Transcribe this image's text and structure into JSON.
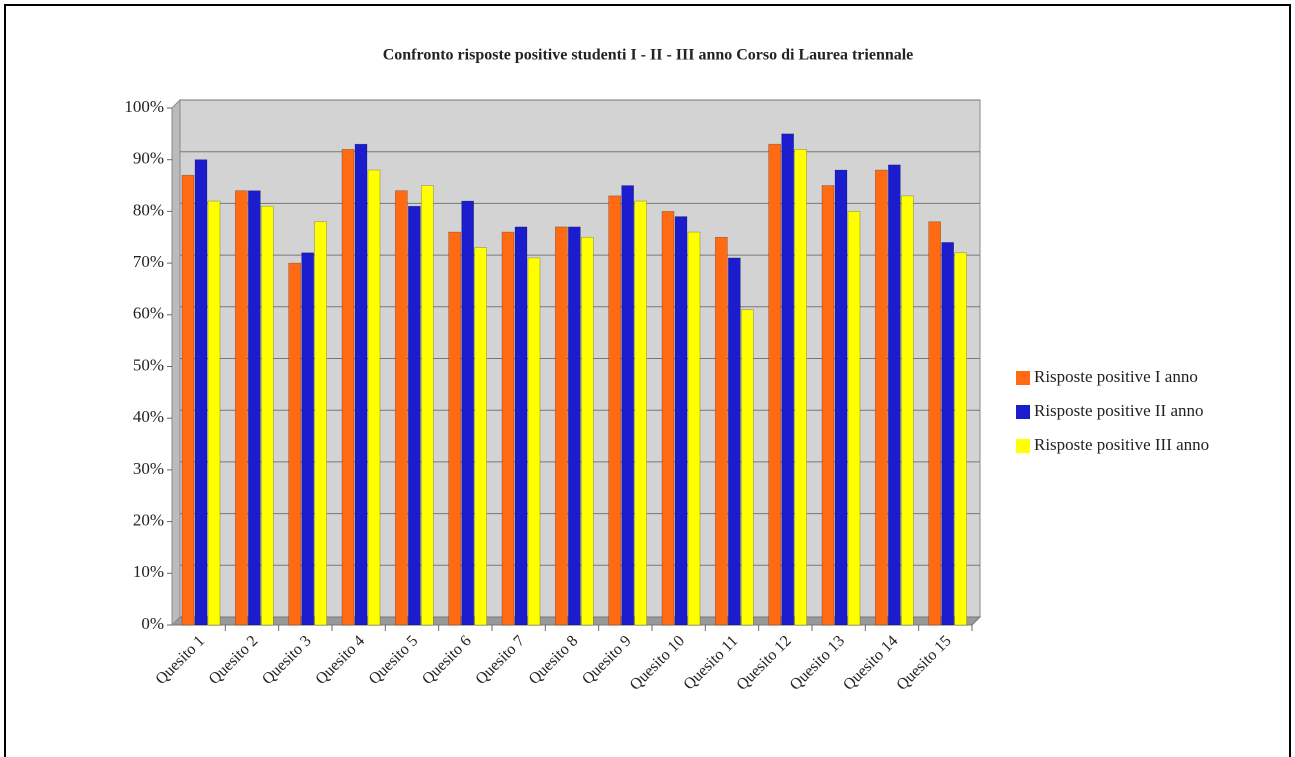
{
  "chart_data": {
    "type": "bar",
    "title": "Confronto risposte positive studenti I - II - III anno Corso di Laurea triennale",
    "categories": [
      "Quesito 1",
      "Quesito 2",
      "Quesito 3",
      "Quesito 4",
      "Quesito 5",
      "Quesito 6",
      "Quesito 7",
      "Quesito 8",
      "Quesito 9",
      "Quesito 10",
      "Quesito 11",
      "Quesito 12",
      "Quesito 13",
      "Quesito 14",
      "Quesito 15"
    ],
    "series": [
      {
        "name": "Risposte positive I anno",
        "color": "#ff6a13",
        "values": [
          87,
          84,
          70,
          92,
          84,
          76,
          76,
          77,
          83,
          80,
          75,
          93,
          85,
          88,
          78
        ]
      },
      {
        "name": "Risposte positive II anno",
        "color": "#1c1ccf",
        "values": [
          90,
          84,
          72,
          93,
          81,
          82,
          77,
          77,
          85,
          79,
          71,
          95,
          88,
          89,
          74
        ]
      },
      {
        "name": "Risposte positive III anno",
        "color": "#ffff00",
        "values": [
          82,
          81,
          78,
          88,
          85,
          73,
          71,
          75,
          82,
          76,
          61,
          92,
          80,
          83,
          72
        ]
      }
    ],
    "ylim": [
      0,
      100
    ],
    "yticks": [
      {
        "value": 0,
        "label": "0%"
      },
      {
        "value": 10,
        "label": "10%"
      },
      {
        "value": 20,
        "label": "20%"
      },
      {
        "value": 30,
        "label": "30%"
      },
      {
        "value": 40,
        "label": "40%"
      },
      {
        "value": 50,
        "label": "50%"
      },
      {
        "value": 60,
        "label": "60%"
      },
      {
        "value": 70,
        "label": "70%"
      },
      {
        "value": 80,
        "label": "80%"
      },
      {
        "value": 90,
        "label": "90%"
      },
      {
        "value": 100,
        "label": "100%"
      }
    ],
    "grid": true,
    "legend": "right"
  }
}
